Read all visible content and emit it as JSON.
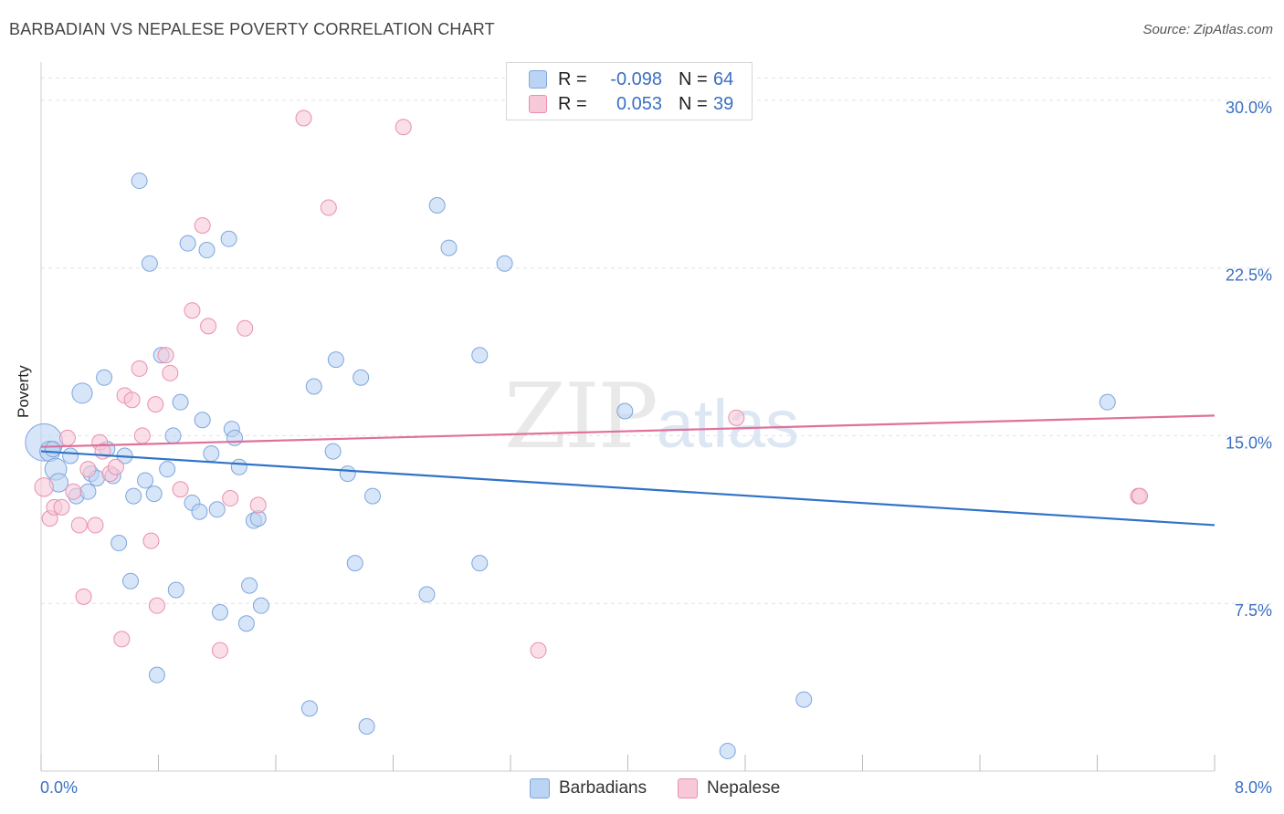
{
  "header": {
    "title": "BARBADIAN VS NEPALESE POVERTY CORRELATION CHART",
    "source": "Source: ZipAtlas.com"
  },
  "watermark": {
    "zip": "ZIP",
    "atlas": "atlas"
  },
  "legend": {
    "series1": {
      "r_label": "R =",
      "r_value": "-0.098",
      "n_label": "N =",
      "n_value": "64"
    },
    "series2": {
      "r_label": "R =",
      "r_value": "0.053",
      "n_label": "N =",
      "n_value": "39"
    }
  },
  "colors": {
    "blue_fill": "#bcd4f3",
    "blue_stroke": "#7ea6dc",
    "blue_line": "#2f73c9",
    "pink_fill": "#f7c9d8",
    "pink_stroke": "#e98fae",
    "pink_line": "#e0709a",
    "axis_label": "#3a6fc4",
    "grid": "#e3e3e3"
  },
  "chart_data": {
    "type": "scatter",
    "title": "BARBADIAN VS NEPALESE POVERTY CORRELATION CHART",
    "xlabel": "",
    "ylabel": "Poverty",
    "xlim": [
      0,
      8
    ],
    "ylim": [
      0,
      31.3
    ],
    "x_tick_labels": [
      "0.0%",
      "8.0%"
    ],
    "y_ticks": [
      7.5,
      15,
      22.5,
      30
    ],
    "y_tick_labels": [
      "7.5%",
      "15.0%",
      "22.5%",
      "30.0%"
    ],
    "series": [
      {
        "name": "Barbadians",
        "color": "#bcd4f3",
        "trend": {
          "x0": 0,
          "y0": 14.3,
          "x1": 8,
          "y1": 11.0
        },
        "points": [
          [
            0.02,
            14.7,
            2.4
          ],
          [
            0.06,
            14.3,
            1.3
          ],
          [
            0.1,
            13.5,
            1.4
          ],
          [
            0.12,
            12.9,
            1.2
          ],
          [
            0.2,
            14.1,
            1.0
          ],
          [
            0.24,
            12.3,
            1.0
          ],
          [
            0.28,
            16.9,
            1.3
          ],
          [
            0.32,
            12.5,
            1.0
          ],
          [
            0.34,
            13.3,
            1.0
          ],
          [
            0.38,
            13.1,
            1.0
          ],
          [
            0.43,
            17.6,
            1.0
          ],
          [
            0.45,
            14.4,
            1.0
          ],
          [
            0.49,
            13.2,
            1.0
          ],
          [
            0.53,
            10.2,
            1.0
          ],
          [
            0.57,
            14.1,
            1.0
          ],
          [
            0.61,
            8.5,
            1.0
          ],
          [
            0.63,
            12.3,
            1.0
          ],
          [
            0.67,
            26.4,
            1.0
          ],
          [
            0.71,
            13.0,
            1.0
          ],
          [
            0.74,
            22.7,
            1.0
          ],
          [
            0.77,
            12.4,
            1.0
          ],
          [
            0.79,
            4.3,
            1.0
          ],
          [
            0.82,
            18.6,
            1.0
          ],
          [
            0.86,
            13.5,
            1.0
          ],
          [
            0.9,
            15.0,
            1.0
          ],
          [
            0.92,
            8.1,
            1.0
          ],
          [
            0.95,
            16.5,
            1.0
          ],
          [
            1.0,
            23.6,
            1.0
          ],
          [
            1.03,
            12.0,
            1.0
          ],
          [
            1.08,
            11.6,
            1.0
          ],
          [
            1.1,
            15.7,
            1.0
          ],
          [
            1.13,
            23.3,
            1.0
          ],
          [
            1.16,
            14.2,
            1.0
          ],
          [
            1.2,
            11.7,
            1.0
          ],
          [
            1.22,
            7.1,
            1.0
          ],
          [
            1.28,
            23.8,
            1.0
          ],
          [
            1.3,
            15.3,
            1.0
          ],
          [
            1.32,
            14.9,
            1.0
          ],
          [
            1.35,
            13.6,
            1.0
          ],
          [
            1.4,
            6.6,
            1.0
          ],
          [
            1.42,
            8.3,
            1.0
          ],
          [
            1.45,
            11.2,
            1.0
          ],
          [
            1.48,
            11.3,
            1.0
          ],
          [
            1.5,
            7.4,
            1.0
          ],
          [
            1.83,
            2.8,
            1.0
          ],
          [
            1.86,
            17.2,
            1.0
          ],
          [
            1.99,
            14.3,
            1.0
          ],
          [
            2.01,
            18.4,
            1.0
          ],
          [
            2.09,
            13.3,
            1.0
          ],
          [
            2.14,
            9.3,
            1.0
          ],
          [
            2.18,
            17.6,
            1.0
          ],
          [
            2.22,
            2.0,
            1.0
          ],
          [
            2.26,
            12.3,
            1.0
          ],
          [
            2.63,
            7.9,
            1.0
          ],
          [
            2.7,
            25.3,
            1.0
          ],
          [
            2.78,
            23.4,
            1.0
          ],
          [
            2.99,
            18.6,
            1.0
          ],
          [
            2.99,
            9.3,
            1.0
          ],
          [
            3.16,
            22.7,
            1.0
          ],
          [
            3.98,
            16.1,
            1.0
          ],
          [
            4.68,
            0.9,
            1.0
          ],
          [
            5.2,
            3.2,
            1.0
          ],
          [
            7.27,
            16.5,
            1.0
          ],
          [
            0.08,
            14.4,
            1.0
          ]
        ]
      },
      {
        "name": "Nepalese",
        "color": "#f7c9d8",
        "trend": {
          "x0": 0,
          "y0": 14.5,
          "x1": 8,
          "y1": 15.9
        },
        "points": [
          [
            0.02,
            12.7,
            1.2
          ],
          [
            0.06,
            11.3,
            1.0
          ],
          [
            0.09,
            11.8,
            1.0
          ],
          [
            0.14,
            11.8,
            1.0
          ],
          [
            0.18,
            14.9,
            1.0
          ],
          [
            0.22,
            12.5,
            1.0
          ],
          [
            0.26,
            11.0,
            1.0
          ],
          [
            0.29,
            7.8,
            1.0
          ],
          [
            0.32,
            13.5,
            1.0
          ],
          [
            0.37,
            11.0,
            1.0
          ],
          [
            0.4,
            14.7,
            1.0
          ],
          [
            0.42,
            14.3,
            1.0
          ],
          [
            0.47,
            13.3,
            1.0
          ],
          [
            0.51,
            13.6,
            1.0
          ],
          [
            0.55,
            5.9,
            1.0
          ],
          [
            0.57,
            16.8,
            1.0
          ],
          [
            0.62,
            16.6,
            1.0
          ],
          [
            0.67,
            18.0,
            1.0
          ],
          [
            0.69,
            15.0,
            1.0
          ],
          [
            0.75,
            10.3,
            1.0
          ],
          [
            0.78,
            16.4,
            1.0
          ],
          [
            0.79,
            7.4,
            1.0
          ],
          [
            0.85,
            18.6,
            1.0
          ],
          [
            0.88,
            17.8,
            1.0
          ],
          [
            0.95,
            12.6,
            1.0
          ],
          [
            1.03,
            20.6,
            1.0
          ],
          [
            1.1,
            24.4,
            1.0
          ],
          [
            1.14,
            19.9,
            1.0
          ],
          [
            1.22,
            5.4,
            1.0
          ],
          [
            1.29,
            12.2,
            1.0
          ],
          [
            1.39,
            19.8,
            1.0
          ],
          [
            1.48,
            11.9,
            1.0
          ],
          [
            1.79,
            29.2,
            1.0
          ],
          [
            1.96,
            25.2,
            1.0
          ],
          [
            2.47,
            28.8,
            1.0
          ],
          [
            3.39,
            5.4,
            1.0
          ],
          [
            4.74,
            15.8,
            1.0
          ],
          [
            7.48,
            12.3,
            1.0
          ],
          [
            7.49,
            12.3,
            1.0
          ]
        ]
      }
    ]
  }
}
